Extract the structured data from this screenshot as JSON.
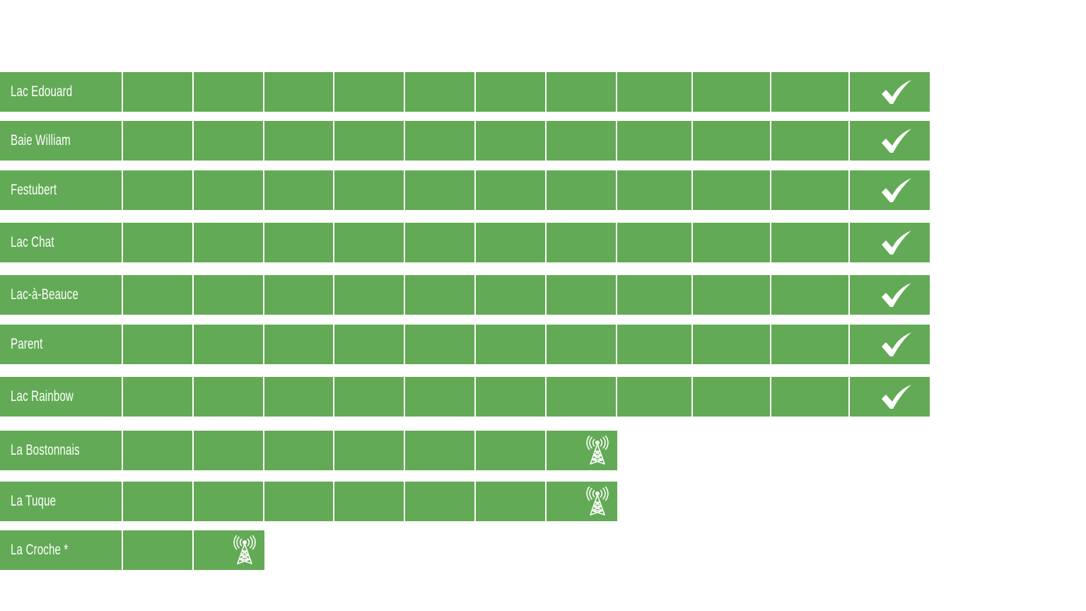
{
  "colors": {
    "cell": "#62aa55",
    "background": "#ffffff",
    "text": "#ffffff",
    "icon": "#ffffff"
  },
  "rows": [
    {
      "label": "Lac Edouard",
      "filled_cells": 11,
      "status_icon": "checkmark-icon"
    },
    {
      "label": "Baie William",
      "filled_cells": 11,
      "status_icon": "checkmark-icon"
    },
    {
      "label": "Festubert",
      "filled_cells": 11,
      "status_icon": "checkmark-icon"
    },
    {
      "label": "Lac Chat",
      "filled_cells": 11,
      "status_icon": "checkmark-icon"
    },
    {
      "label": "Lac-à-Beauce",
      "filled_cells": 11,
      "status_icon": "checkmark-icon"
    },
    {
      "label": "Parent",
      "filled_cells": 11,
      "status_icon": "checkmark-icon"
    },
    {
      "label": "Lac Rainbow",
      "filled_cells": 11,
      "status_icon": "checkmark-icon"
    },
    {
      "label": "La Bostonnais",
      "filled_cells": 7,
      "status_icon": "radio-tower-icon"
    },
    {
      "label": "La Tuque",
      "filled_cells": 7,
      "status_icon": "radio-tower-icon"
    },
    {
      "label": "La Croche *",
      "filled_cells": 2,
      "status_icon": "radio-tower-icon"
    }
  ]
}
